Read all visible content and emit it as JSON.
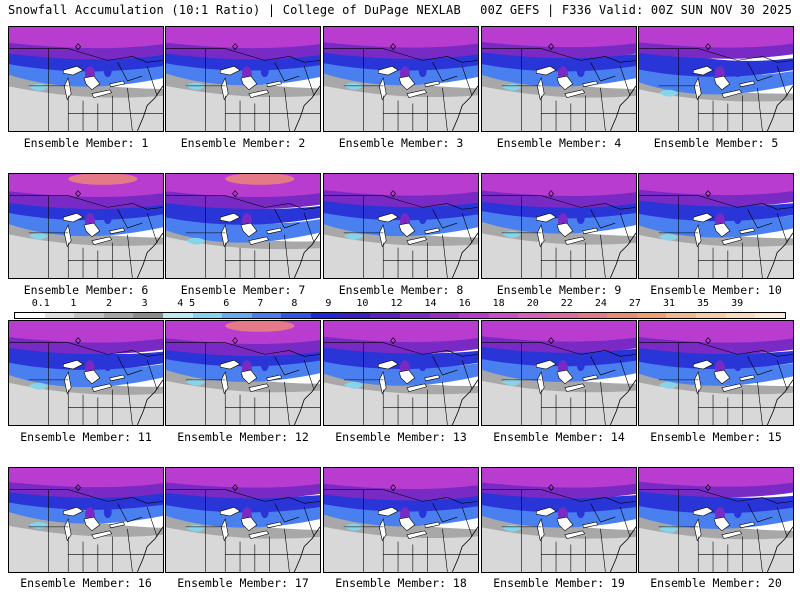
{
  "header": {
    "left": "Snowfall Accumulation (10:1 Ratio) | College of DuPage NEXLAB",
    "right": "00Z GEFS | F336 Valid: 00Z SUN NOV 30 2025"
  },
  "caption_prefix": "Ensemble Member: ",
  "members": [
    {
      "label": "Ensemble Member: 1",
      "intensity": 0.75,
      "reach": 0.55
    },
    {
      "label": "Ensemble Member: 2",
      "intensity": 0.75,
      "reach": 0.5
    },
    {
      "label": "Ensemble Member: 3",
      "intensity": 0.7,
      "reach": 0.5
    },
    {
      "label": "Ensemble Member: 4",
      "intensity": 0.65,
      "reach": 0.55
    },
    {
      "label": "Ensemble Member: 5",
      "intensity": 0.7,
      "reach": 0.85
    },
    {
      "label": "Ensemble Member: 6",
      "intensity": 0.95,
      "reach": 0.65
    },
    {
      "label": "Ensemble Member: 7",
      "intensity": 0.95,
      "reach": 0.9
    },
    {
      "label": "Ensemble Member: 8",
      "intensity": 0.8,
      "reach": 0.65
    },
    {
      "label": "Ensemble Member: 9",
      "intensity": 0.85,
      "reach": 0.55
    },
    {
      "label": "Ensemble Member: 10",
      "intensity": 0.75,
      "reach": 0.7
    },
    {
      "label": "Ensemble Member: 11",
      "intensity": 0.8,
      "reach": 0.8
    },
    {
      "label": "Ensemble Member: 12",
      "intensity": 0.95,
      "reach": 0.6
    },
    {
      "label": "Ensemble Member: 13",
      "intensity": 0.75,
      "reach": 0.75
    },
    {
      "label": "Ensemble Member: 14",
      "intensity": 0.7,
      "reach": 0.6
    },
    {
      "label": "Ensemble Member: 15",
      "intensity": 0.8,
      "reach": 0.75
    },
    {
      "label": "Ensemble Member: 16",
      "intensity": 0.55,
      "reach": 0.4
    },
    {
      "label": "Ensemble Member: 17",
      "intensity": 0.6,
      "reach": 0.55
    },
    {
      "label": "Ensemble Member: 18",
      "intensity": 0.75,
      "reach": 0.5
    },
    {
      "label": "Ensemble Member: 19",
      "intensity": 0.6,
      "reach": 0.55
    },
    {
      "label": "Ensemble Member: 20",
      "intensity": 0.5,
      "reach": 0.6
    }
  ],
  "colorbar": {
    "labels": [
      "0.1",
      "1",
      "2",
      "3",
      "4",
      "5",
      "6",
      "7",
      "8",
      "9",
      "10",
      "12",
      "14",
      "16",
      "18",
      "20",
      "22",
      "24",
      "27",
      "31",
      "35",
      "39"
    ],
    "colors": [
      "#ffffff",
      "#e0e0e0",
      "#c4c4c4",
      "#a6a6a6",
      "#8c8c8c",
      "#bfe9f2",
      "#86d3ea",
      "#6aa8f0",
      "#4a7ff0",
      "#2f55ea",
      "#2027d8",
      "#3a1fc8",
      "#5a22c0",
      "#7a2ac4",
      "#9a30c8",
      "#b83cd0",
      "#cc4ec8",
      "#d860b8",
      "#de6aa2",
      "#e47a88",
      "#ea8c72",
      "#f0a070",
      "#f4b88a",
      "#f8cca4",
      "#fadcc0",
      "#fcead8"
    ]
  }
}
